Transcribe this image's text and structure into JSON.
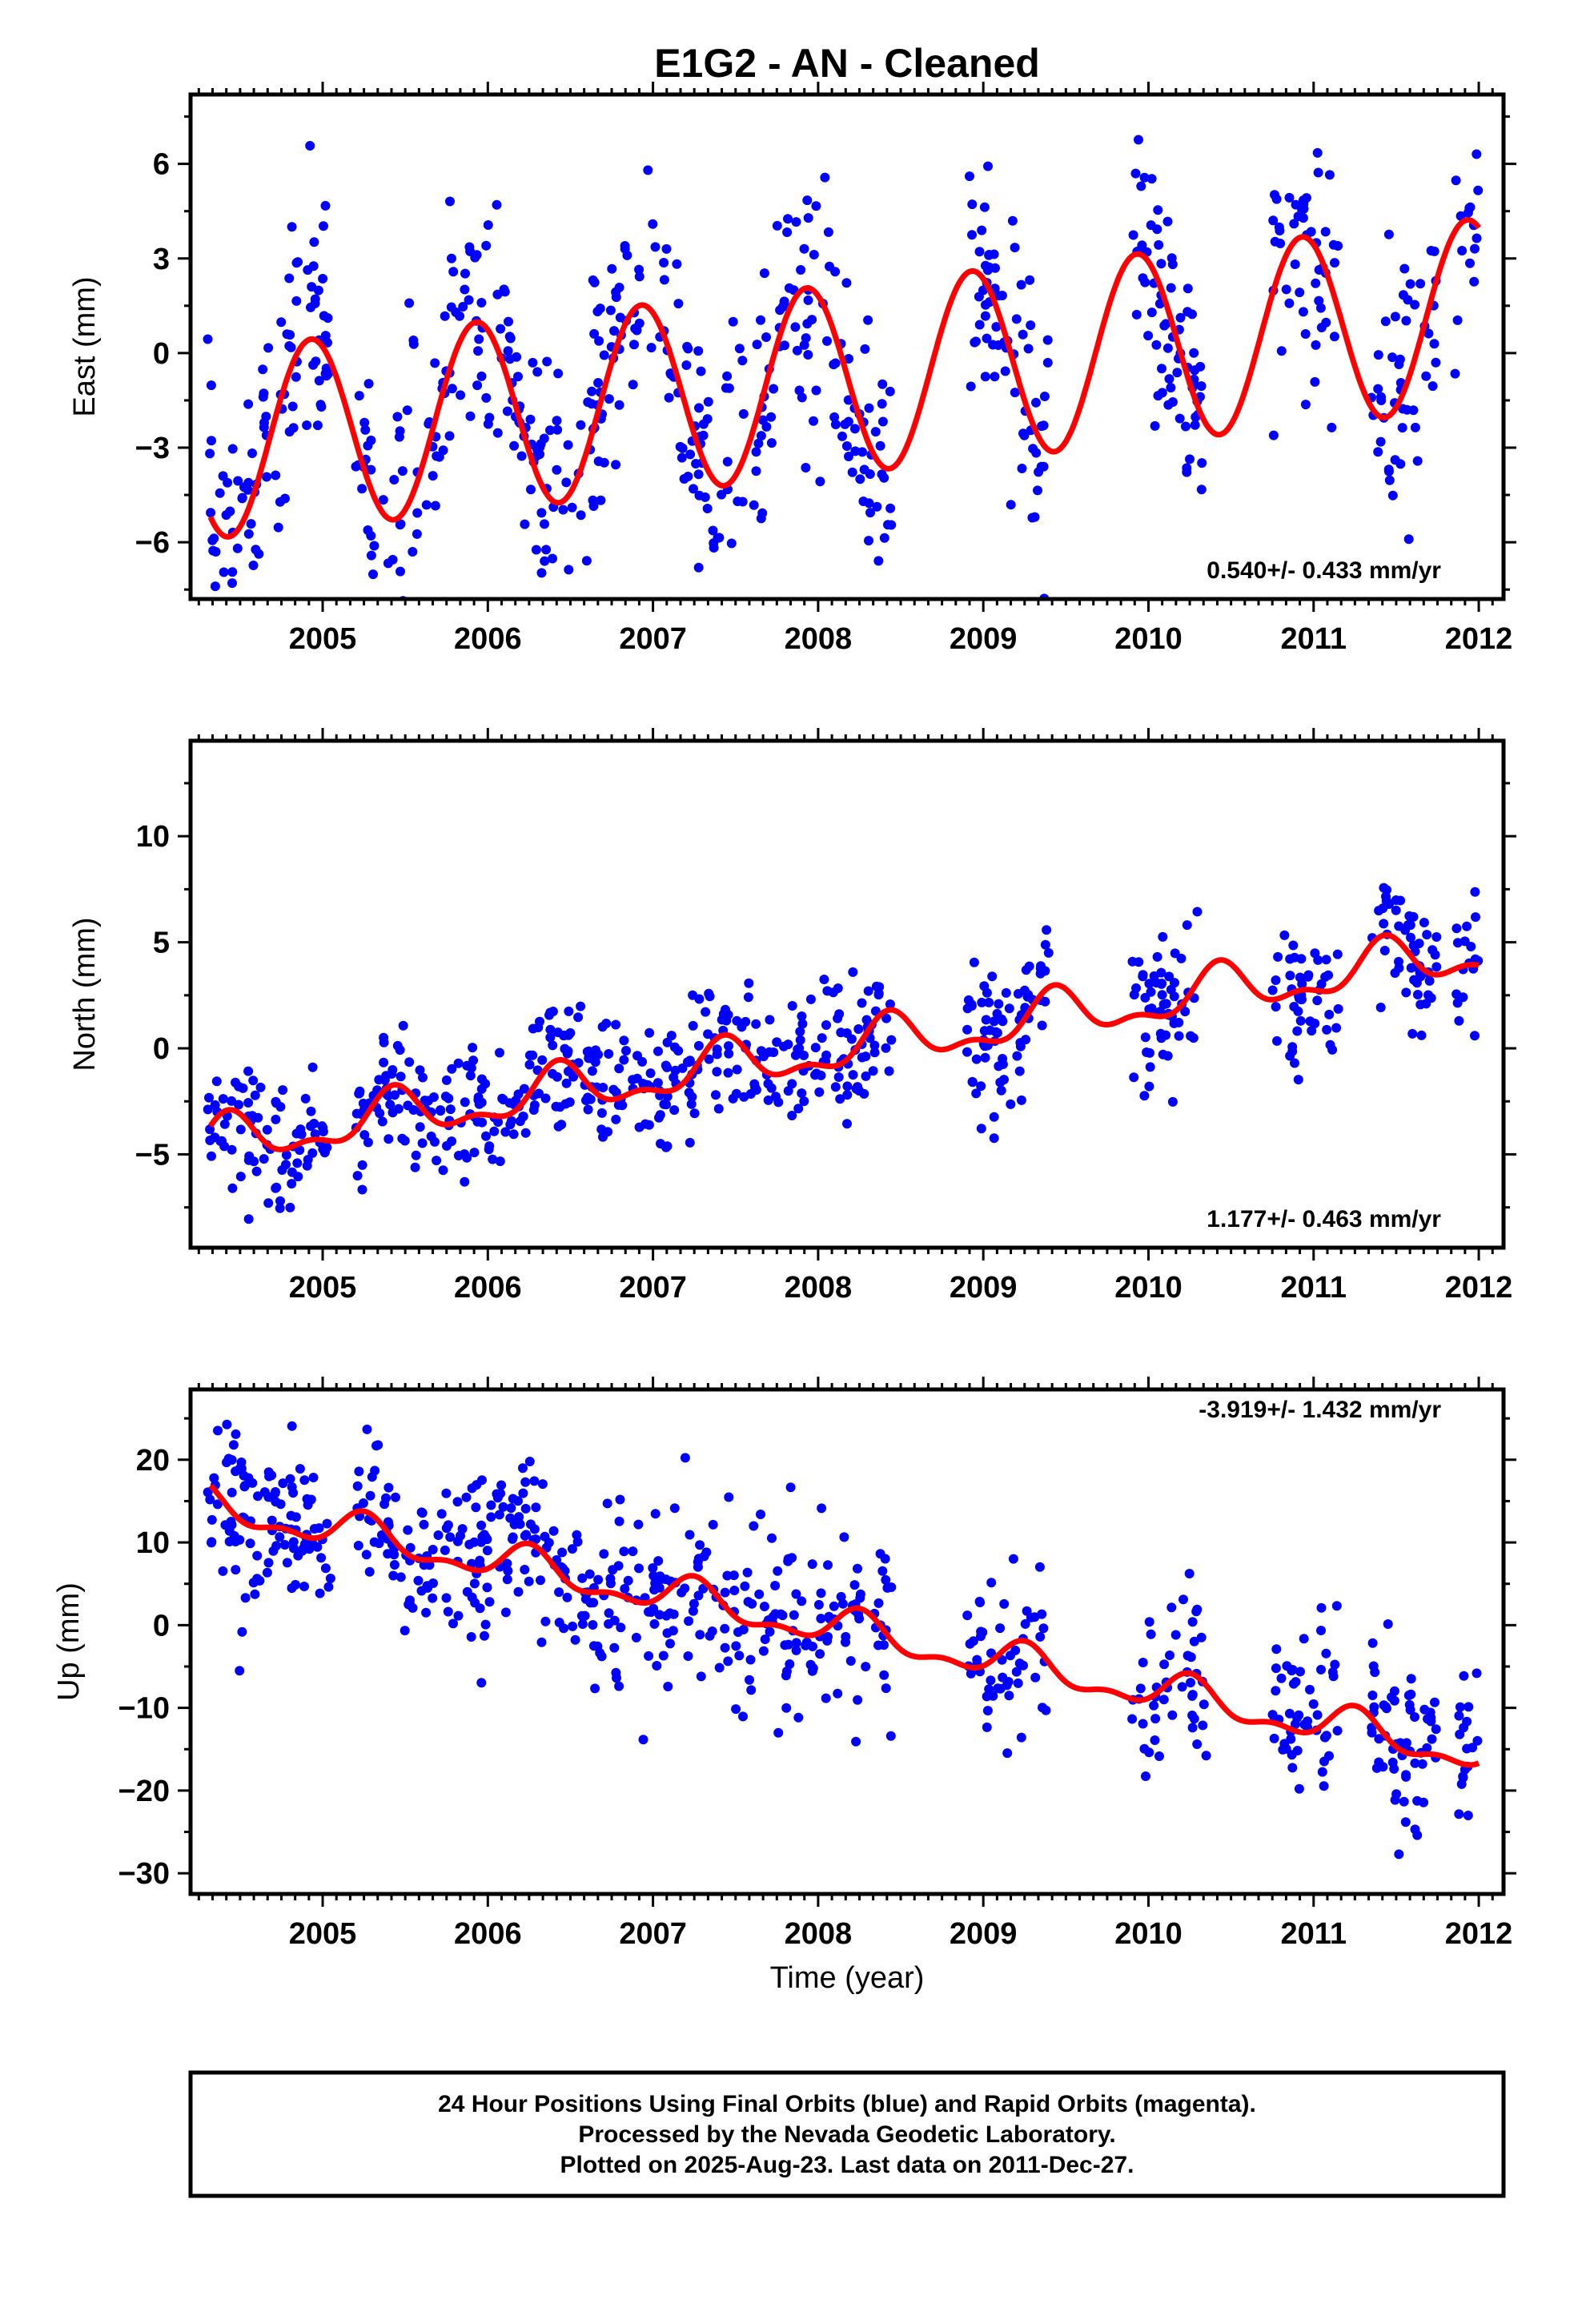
{
  "title": "E1G2  - AN - Cleaned",
  "footer": {
    "line1": "24 Hour Positions Using Final Orbits (blue) and Rapid Orbits (magenta).",
    "line2": "Processed by the Nevada Geodetic Laboratory.",
    "line3": "Plotted on 2025-Aug-23. Last data on 2011-Dec-27."
  },
  "colors": {
    "points": "#0000ff",
    "model": "#ff0000",
    "frame": "#000000"
  },
  "chart_data": [
    {
      "type": "scatter",
      "id": "east",
      "ylabel": "East (mm)",
      "rate_label": "0.540+/- 0.433 mm/yr",
      "xlim": [
        2004.2,
        2012.15
      ],
      "ylim": [
        -7.8,
        8.2
      ],
      "xticks": [
        2005,
        2006,
        2007,
        2008,
        2009,
        2010,
        2011,
        2012
      ],
      "yticks": [
        -6,
        -3,
        0,
        3,
        6
      ],
      "model": {
        "offset": -0.9,
        "rate": 0.54,
        "t0": 2008.0,
        "amp": 3.0,
        "phase_peak": 2004.93,
        "amp2": 0.0,
        "noise": 2.0
      },
      "data_segments": [
        [
          2004.3,
          2005.05
        ],
        [
          2005.2,
          2008.45
        ],
        [
          2008.9,
          2009.4
        ],
        [
          2009.9,
          2010.35
        ],
        [
          2010.75,
          2011.15
        ],
        [
          2011.35,
          2011.75
        ],
        [
          2011.85,
          2012.0
        ]
      ],
      "count": 720
    },
    {
      "type": "scatter",
      "id": "north",
      "ylabel": "North (mm)",
      "rate_label": "1.177+/- 0.463 mm/yr",
      "xlim": [
        2004.2,
        2012.15
      ],
      "ylim": [
        -9.4,
        14.5
      ],
      "xticks": [
        2005,
        2006,
        2007,
        2008,
        2009,
        2010,
        2011,
        2012
      ],
      "yticks": [
        -5,
        0,
        5,
        10
      ],
      "model": {
        "offset": -0.2,
        "rate": 1.177,
        "t0": 2008.0,
        "amp": 1.0,
        "phase_peak": 2004.43,
        "amp2": 0.5,
        "noise": 1.6
      },
      "data_segments": [
        [
          2004.3,
          2005.05
        ],
        [
          2005.2,
          2008.45
        ],
        [
          2008.9,
          2009.4
        ],
        [
          2009.9,
          2010.35
        ],
        [
          2010.75,
          2011.15
        ],
        [
          2011.35,
          2011.75
        ],
        [
          2011.85,
          2012.0
        ]
      ],
      "count": 720
    },
    {
      "type": "scatter",
      "id": "up",
      "ylabel": "Up (mm)",
      "rate_label": "-3.919+/- 1.432 mm/yr",
      "xlim": [
        2004.2,
        2012.15
      ],
      "ylim": [
        -32.5,
        28.5
      ],
      "xticks": [
        2005,
        2006,
        2007,
        2008,
        2009,
        2010,
        2011,
        2012
      ],
      "yticks": [
        -30,
        -20,
        -10,
        0,
        10,
        20
      ],
      "model": {
        "offset": 0.0,
        "rate": -3.919,
        "t0": 2008.0,
        "amp": 2.0,
        "phase_peak": 2005.25,
        "amp2": 1.0,
        "noise": 5.5
      },
      "data_segments": [
        [
          2004.3,
          2005.05
        ],
        [
          2005.2,
          2008.45
        ],
        [
          2008.9,
          2009.4
        ],
        [
          2009.9,
          2010.35
        ],
        [
          2010.75,
          2011.15
        ],
        [
          2011.35,
          2011.75
        ],
        [
          2011.85,
          2012.0
        ]
      ],
      "count": 720
    }
  ],
  "xlabel": "Time (year)"
}
